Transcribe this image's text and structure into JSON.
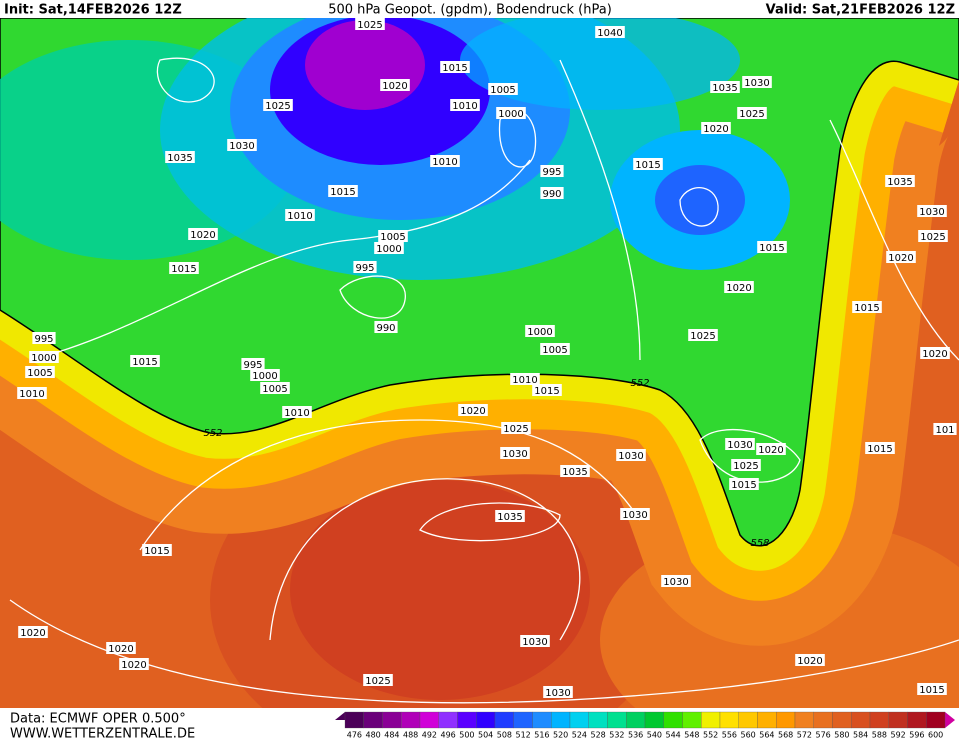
{
  "header": {
    "init": "Init: Sat,14FEB2026 12Z",
    "title": "500 hPa Geopot. (gpdm), Bodendruck (hPa)",
    "valid": "Valid: Sat,21FEB2026 12Z"
  },
  "isobar_labels": [
    "1025",
    "1040",
    "1015",
    "1020",
    "1030",
    "1035",
    "1010",
    "1005",
    "1025",
    "1000",
    "1025",
    "1020",
    "1030",
    "1035",
    "1010",
    "1015",
    "995",
    "1015",
    "990",
    "1035",
    "1010",
    "1030",
    "1005",
    "1020",
    "1025",
    "1000",
    "1015",
    "1020",
    "995",
    "1015",
    "1020",
    "1015",
    "990",
    "1000",
    "1025",
    "995",
    "1005",
    "1000",
    "1015",
    "1020",
    "995",
    "1005",
    "1000",
    "1010",
    "1015",
    "1005",
    "1010",
    "1010",
    "1020",
    "1025",
    "1030",
    "1020",
    "1015",
    "101",
    "1030",
    "1030",
    "1025",
    "1035",
    "1015",
    "1030",
    "1035",
    "1015",
    "1030",
    "1020",
    "1020",
    "1030",
    "1020",
    "1020",
    "1025",
    "1030",
    "1015"
  ],
  "contour_labels": [
    "552",
    "552",
    "558"
  ],
  "legend": {
    "values": [
      476,
      480,
      484,
      488,
      492,
      496,
      500,
      504,
      508,
      512,
      516,
      520,
      524,
      528,
      532,
      536,
      540,
      544,
      548,
      552,
      556,
      560,
      564,
      568,
      572,
      576,
      580,
      584,
      588,
      592,
      596,
      600
    ],
    "colors": [
      "#4b0058",
      "#6a007a",
      "#8a0096",
      "#b000b8",
      "#d000d8",
      "#9030ff",
      "#5a00ff",
      "#3000ff",
      "#1f3cff",
      "#1e64ff",
      "#1e8cff",
      "#00b4ff",
      "#00d0f0",
      "#00e0c0",
      "#00e090",
      "#00d060",
      "#00c830",
      "#30e000",
      "#60f000",
      "#f0f000",
      "#ffe000",
      "#ffc800",
      "#ffb000",
      "#ff9800",
      "#f08020",
      "#e87020",
      "#e06020",
      "#d85020",
      "#d04020",
      "#c03020",
      "#b01820",
      "#a00020"
    ]
  },
  "footer": {
    "source": "Data: ECMWF OPER 0.500°",
    "site": "WWW.WETTERZENTRALE.DE"
  }
}
